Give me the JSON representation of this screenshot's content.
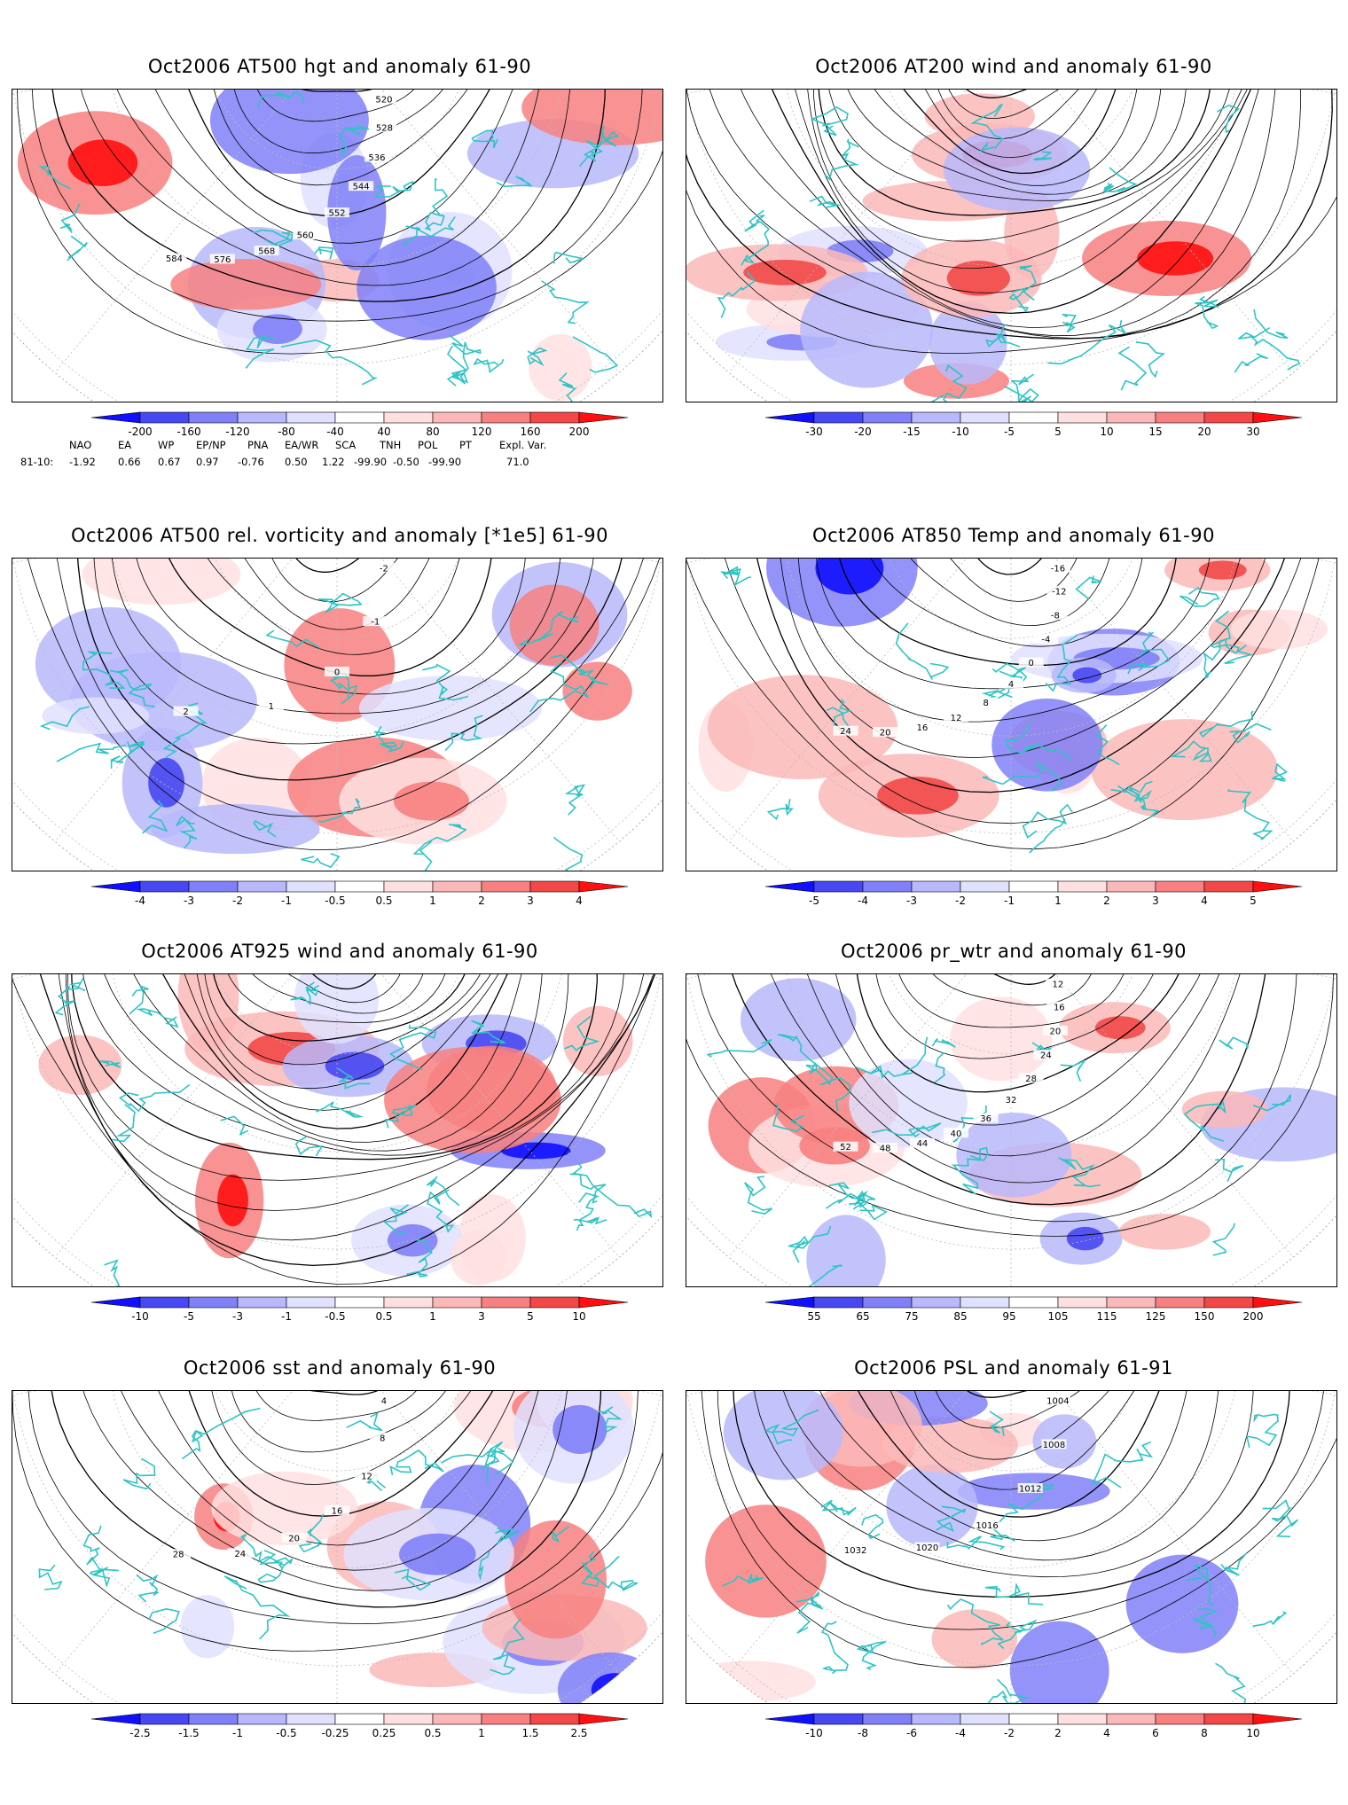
{
  "colors": {
    "coast": "#2ec4c4",
    "contour": "#000000",
    "pos": [
      "#ffe0e0",
      "#fcb8b8",
      "#f88080",
      "#f24848",
      "#ff1010"
    ],
    "neg": [
      "#e0e0ff",
      "#b8b8fc",
      "#8080f8",
      "#4848f2",
      "#1010ff"
    ],
    "grid": "#bbbbbb"
  },
  "panels": [
    {
      "id": "p1",
      "title": "Oct2006 AT500 hgt and anomaly 61-90",
      "colorbar_ticks": [
        "-200",
        "-160",
        "-120",
        "-80",
        "-40",
        "40",
        "80",
        "120",
        "160",
        "200"
      ],
      "contour_labels": [
        "520",
        "528",
        "536",
        "544",
        "552",
        "560",
        "568",
        "576",
        "584"
      ]
    },
    {
      "id": "p2",
      "title": "Oct2006 AT200 wind and anomaly 61-90",
      "colorbar_ticks": [
        "-30",
        "-20",
        "-15",
        "-10",
        "-5",
        "5",
        "10",
        "15",
        "20",
        "30"
      ],
      "contour_labels": []
    },
    {
      "id": "p3",
      "title": "Oct2006 AT500 rel. vorticity and anomaly [*1e5] 61-90",
      "colorbar_ticks": [
        "-4",
        "-3",
        "-2",
        "-1",
        "-0.5",
        "0.5",
        "1",
        "2",
        "3",
        "4"
      ],
      "contour_labels": [
        "-2",
        "-1",
        "0",
        "1",
        "2"
      ]
    },
    {
      "id": "p4",
      "title": "Oct2006 AT850 Temp and anomaly 61-90",
      "colorbar_ticks": [
        "-5",
        "-4",
        "-3",
        "-2",
        "-1",
        "1",
        "2",
        "3",
        "4",
        "5"
      ],
      "contour_labels": [
        "-16",
        "-12",
        "-8",
        "-4",
        "0",
        "4",
        "8",
        "12",
        "16",
        "20",
        "24"
      ]
    },
    {
      "id": "p5",
      "title": "Oct2006 AT925 wind and anomaly 61-90",
      "colorbar_ticks": [
        "-10",
        "-5",
        "-3",
        "-1",
        "-0.5",
        "0.5",
        "1",
        "3",
        "5",
        "10"
      ],
      "contour_labels": []
    },
    {
      "id": "p6",
      "title": "Oct2006 pr_wtr and anomaly 61-90",
      "colorbar_ticks": [
        "55",
        "65",
        "75",
        "85",
        "95",
        "105",
        "115",
        "125",
        "150",
        "200"
      ],
      "contour_labels": [
        "12",
        "16",
        "20",
        "24",
        "28",
        "32",
        "36",
        "40",
        "44",
        "48",
        "52"
      ]
    },
    {
      "id": "p7",
      "title": "Oct2006 sst and anomaly 61-90",
      "colorbar_ticks": [
        "-2.5",
        "-1.5",
        "-1",
        "-0.5",
        "-0.25",
        "0.25",
        "0.5",
        "1",
        "1.5",
        "2.5"
      ],
      "contour_labels": [
        "4",
        "8",
        "12",
        "16",
        "20",
        "24",
        "28"
      ]
    },
    {
      "id": "p8",
      "title": "Oct2006 PSL and anomaly 61-91",
      "colorbar_ticks": [
        "-10",
        "-8",
        "-6",
        "-4",
        "-2",
        "2",
        "4",
        "6",
        "8",
        "10"
      ],
      "contour_labels": [
        "1004",
        "1008",
        "1012",
        "1016",
        "1020",
        "1032"
      ]
    }
  ],
  "teleconnections": {
    "headers": [
      "NAO",
      "EA",
      "WP",
      "EP/NP",
      "PNA",
      "EA/WR",
      "SCA",
      "TNH",
      "POL",
      "PT",
      "Expl. Var."
    ],
    "row_label": "81-10:",
    "values": [
      "-1.92",
      "0.66",
      "0.67",
      "0.97",
      "-0.76",
      "0.50",
      "1.22",
      "-99.90",
      "-0.50",
      "-99.90",
      "71.0"
    ]
  }
}
